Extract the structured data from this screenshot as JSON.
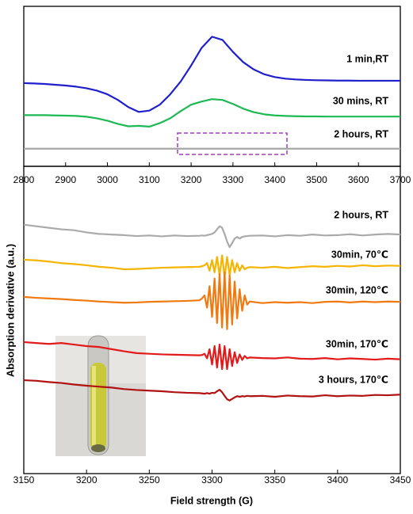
{
  "chart_data": [
    {
      "type": "line",
      "x": [
        2800,
        2825,
        2850,
        2875,
        2900,
        2925,
        2950,
        2975,
        3000,
        3025,
        3050,
        3075,
        3100,
        3125,
        3150,
        3175,
        3200,
        3225,
        3250,
        3275,
        3300,
        3325,
        3350,
        3375,
        3400,
        3425,
        3450,
        3475,
        3500,
        3525,
        3550,
        3575,
        3600,
        3625,
        3650,
        3675,
        3700
      ],
      "xlim": [
        2800,
        3700
      ],
      "xticks": [
        2800,
        2900,
        3000,
        3100,
        3200,
        3300,
        3400,
        3500,
        3600,
        3700
      ],
      "ylim": [
        0,
        100
      ],
      "series": [
        {
          "name": "1 min,RT",
          "color": "#1f1fcc",
          "values": [
            52,
            51.8,
            51.5,
            51,
            50.5,
            49.8,
            48.8,
            47.3,
            45,
            41.5,
            37,
            34,
            34.8,
            38.5,
            45,
            53,
            63,
            74,
            81,
            79,
            71.5,
            65,
            60.5,
            57.5,
            55.8,
            54.8,
            54.3,
            54,
            53.8,
            53.7,
            53.6,
            53.6,
            53.5,
            53.5,
            53.5,
            53.5,
            53.5
          ]
        },
        {
          "name": "30 mins, RT",
          "color": "#1db954",
          "values": [
            32,
            32,
            32,
            31.8,
            31.7,
            31.5,
            31,
            30,
            28.5,
            26.5,
            25,
            25.3,
            24.8,
            27,
            30,
            34.5,
            38.5,
            40.5,
            42,
            41.5,
            39,
            36,
            33.8,
            32.5,
            31.8,
            31.5,
            31.3,
            31.2,
            31.2,
            31.1,
            31.1,
            31.1,
            31.1,
            31.1,
            31.1,
            31.1,
            31.1
          ]
        },
        {
          "name": "2 hours, RT",
          "color": "#a6a6a6",
          "values": [
            11,
            11,
            11,
            11,
            11,
            11,
            11,
            11,
            11,
            11,
            11,
            11,
            11,
            11,
            11,
            11,
            11,
            11,
            11,
            11,
            11,
            11,
            11,
            11,
            11,
            11,
            11,
            11,
            11,
            11,
            11,
            11,
            11,
            11,
            11,
            11,
            11
          ]
        }
      ]
    },
    {
      "type": "line",
      "x": [
        3150,
        3160,
        3170,
        3180,
        3190,
        3200,
        3210,
        3220,
        3230,
        3240,
        3250,
        3260,
        3270,
        3280,
        3290,
        3292,
        3294,
        3296,
        3298,
        3300,
        3302,
        3304,
        3306,
        3308,
        3310,
        3312,
        3314,
        3316,
        3318,
        3320,
        3322,
        3324,
        3326,
        3328,
        3330,
        3340,
        3350,
        3360,
        3370,
        3380,
        3390,
        3400,
        3410,
        3420,
        3430,
        3440,
        3450
      ],
      "xlim": [
        3150,
        3450
      ],
      "xticks": [
        3150,
        3200,
        3250,
        3300,
        3350,
        3400,
        3450
      ],
      "ylim": [
        0,
        100
      ],
      "xlabel": "Field strength (G)",
      "ylabel": "Absorption derivative (a.u.)",
      "series": [
        {
          "name": "2 hours, RT",
          "color": "#aaaaaa",
          "values": [
            81,
            80.5,
            80,
            79.5,
            79.2,
            78.5,
            78,
            77.8,
            77.6,
            77.3,
            77.5,
            77.2,
            77.5,
            77.3,
            77.4,
            77.5,
            77.4,
            77.6,
            77.8,
            78,
            78.5,
            79.5,
            80.5,
            80,
            78,
            75.5,
            73.7,
            75,
            76.5,
            77,
            76.5,
            77,
            77.2,
            77.3,
            77.4,
            77.5,
            77.2,
            77.6,
            77.4,
            77.8,
            77.5,
            77.6,
            77.9,
            77.5,
            77.8,
            78,
            77.8
          ]
        },
        {
          "name": "30min, 70℃",
          "color": "#f5b400",
          "values": [
            69.6,
            69.4,
            69,
            68.5,
            68.2,
            67.8,
            67.3,
            67,
            66.5,
            66.6,
            66.8,
            67,
            67.1,
            67.2,
            67.3,
            67.5,
            67.8,
            68.5,
            66,
            69.5,
            65.5,
            70.5,
            64.5,
            71,
            64,
            70.5,
            64.5,
            69.5,
            65.5,
            68.5,
            66,
            67.8,
            66.5,
            67,
            67.2,
            67,
            67.3,
            66.9,
            67.2,
            67.5,
            67.3,
            67.6,
            67.4,
            67.8,
            67.5,
            67.7,
            67.6
          ]
        },
        {
          "name": "30min, 120℃",
          "color": "#f07a10",
          "values": [
            57.5,
            57.2,
            57,
            56.8,
            56.5,
            56.3,
            56,
            55.8,
            55.6,
            55.7,
            55.9,
            56,
            56.1,
            56.2,
            56.4,
            57,
            58,
            54,
            61,
            51,
            63.5,
            49,
            65,
            47.5,
            65.5,
            47,
            64.5,
            48.5,
            62.5,
            50.5,
            60,
            53,
            58,
            55,
            56,
            55.5,
            55.8,
            55.6,
            55.8,
            55.5,
            55.9,
            56,
            55.7,
            56,
            55.8,
            56,
            55.9
          ]
        },
        {
          "name": "30min, 170℃",
          "color": "#e31a1a",
          "values": [
            42.8,
            42.5,
            42.2,
            42.5,
            42,
            41.5,
            41.2,
            40.5,
            39.8,
            39.2,
            39,
            38.8,
            38.7,
            38.6,
            38.5,
            38.6,
            39,
            37.5,
            40.5,
            35.5,
            41.5,
            34.5,
            42,
            34,
            41.5,
            34,
            40.5,
            35,
            39.5,
            36,
            38.8,
            37,
            38.3,
            37.5,
            37.8,
            37.6,
            37.5,
            37.8,
            37.4,
            37.3,
            37.6,
            37.2,
            37.5,
            37.3,
            37.1,
            37.4,
            37.2
          ]
        },
        {
          "name": "3 hours, 170℃",
          "color": "#b01212",
          "values": [
            30.4,
            30.2,
            29.8,
            29.5,
            29,
            28.6,
            28.3,
            28,
            27.5,
            27.2,
            27,
            26.8,
            26.5,
            26.3,
            26.2,
            26.1,
            26,
            26.2,
            26,
            26.3,
            26.2,
            26.8,
            27.3,
            26.5,
            25.3,
            24.2,
            23.8,
            24.3,
            24.8,
            25.2,
            25,
            25.2,
            25.1,
            25.3,
            25.2,
            25.3,
            25,
            25.4,
            25.2,
            25.1,
            25.5,
            25.2,
            25.4,
            25.3,
            25.6,
            25.5,
            25.7
          ]
        }
      ]
    }
  ]
}
